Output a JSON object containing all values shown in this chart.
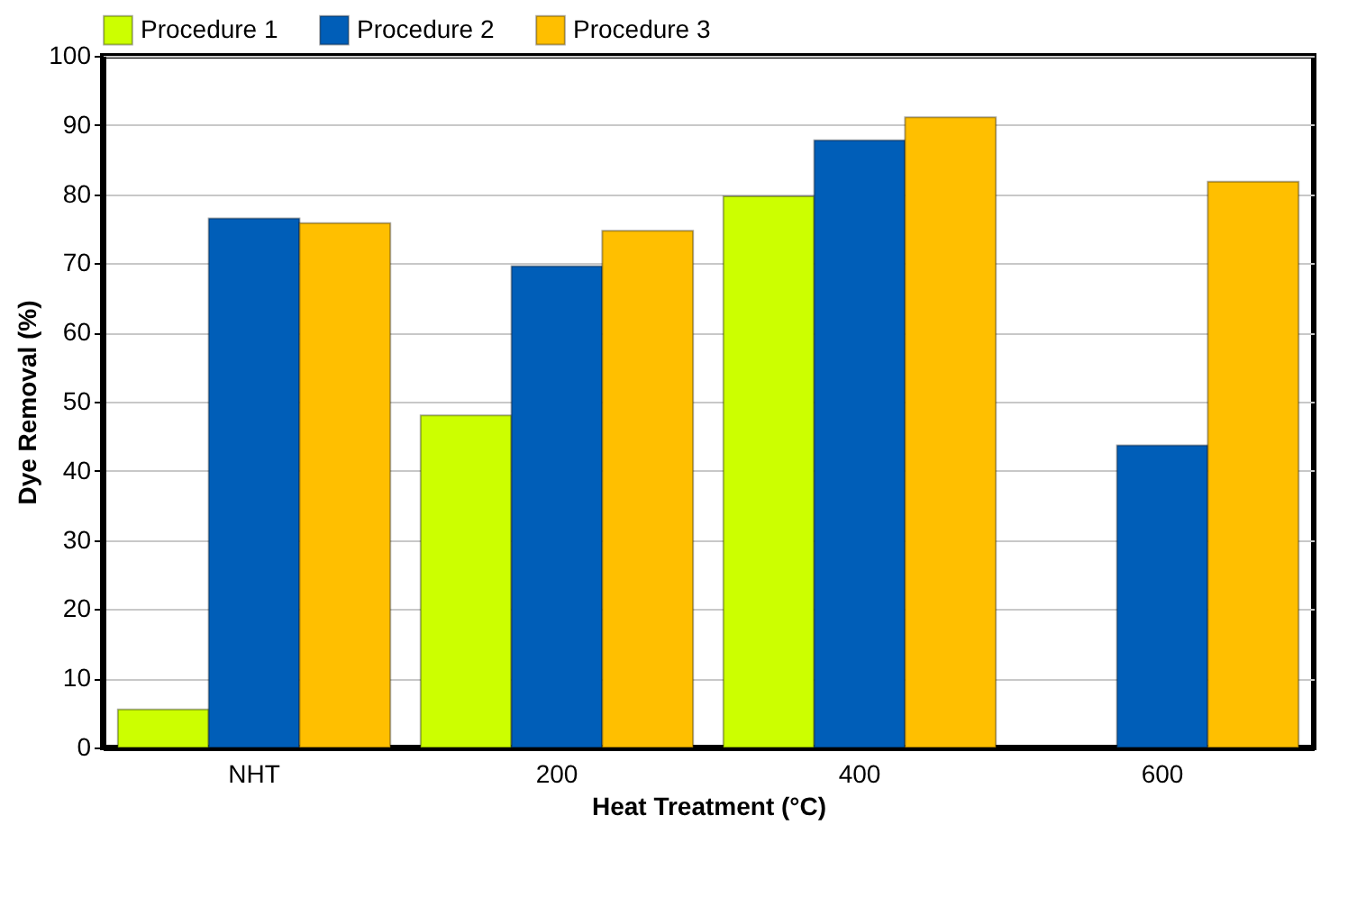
{
  "chart_data": {
    "type": "bar",
    "xlabel": "Heat Treatment (°C)",
    "ylabel": "Dye Removal (%)",
    "categories": [
      "NHT",
      "200",
      "400",
      "600"
    ],
    "series": [
      {
        "name": "Procedure 1",
        "color": "#ccff00",
        "values": [
          5.5,
          48,
          79.7,
          null
        ]
      },
      {
        "name": "Procedure 2",
        "color": "#005eb8",
        "values": [
          76.5,
          69.6,
          87.8,
          43.7
        ]
      },
      {
        "name": "Procedure 3",
        "color": "#ffbf00",
        "values": [
          75.8,
          74.7,
          91.1,
          81.8
        ]
      }
    ],
    "ylim": [
      0,
      100
    ],
    "yticks": [
      0,
      10,
      20,
      30,
      40,
      50,
      60,
      70,
      80,
      90,
      100
    ],
    "grid": "y",
    "legend": "top left"
  }
}
